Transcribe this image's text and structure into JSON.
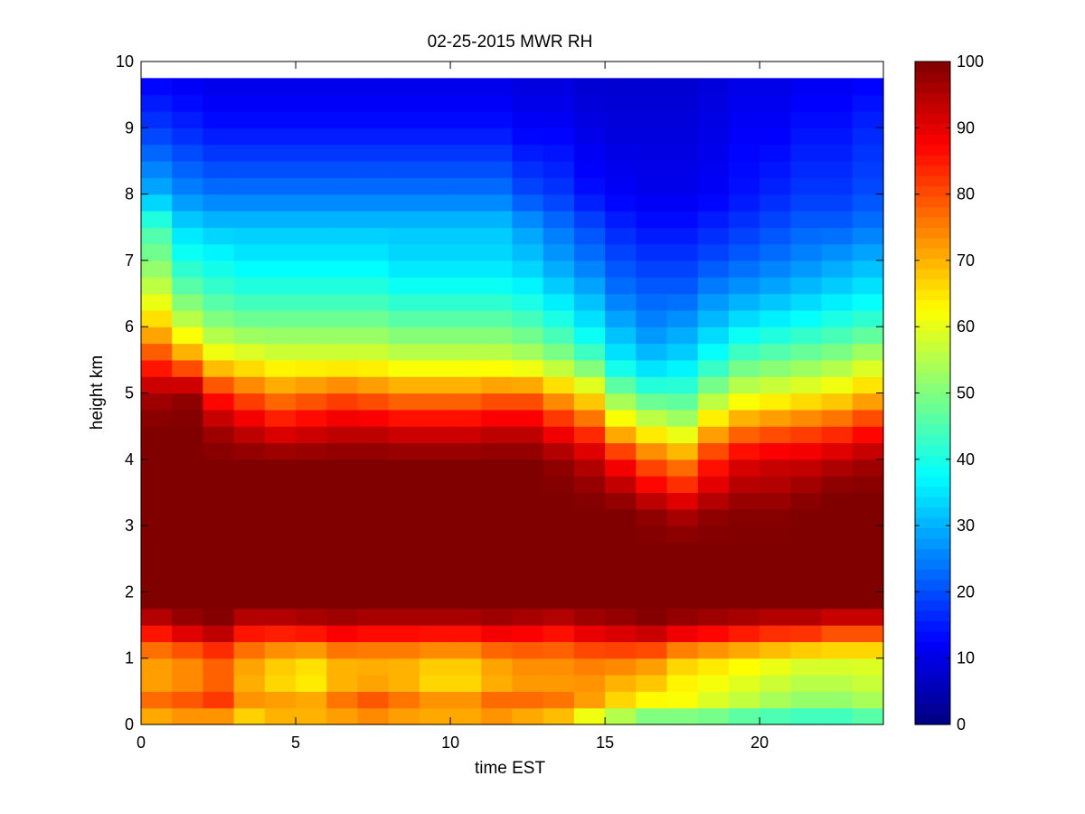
{
  "chart_data": {
    "type": "heatmap",
    "title": "02-25-2015 MWR RH",
    "xlabel": "time EST",
    "ylabel": "height km",
    "xlim": [
      0,
      24
    ],
    "ylim": [
      0,
      10
    ],
    "xticks": [
      0,
      5,
      10,
      15,
      20
    ],
    "yticks": [
      0,
      1,
      2,
      3,
      4,
      5,
      6,
      7,
      8,
      9,
      10
    ],
    "colorbar": {
      "range": [
        0,
        100
      ],
      "ticks": [
        0,
        10,
        20,
        30,
        40,
        50,
        60,
        70,
        80,
        90,
        100
      ],
      "colormap": "jet"
    },
    "time_start": 0,
    "time_step": 1,
    "time_count": 24,
    "height_step": 0.25,
    "height_max": 9.75,
    "grid": false,
    "profile_keys": [
      "heights",
      "t0",
      "t1",
      "t2",
      "t3",
      "t4",
      "t5",
      "t6",
      "t7",
      "t8",
      "t9",
      "t10",
      "t11",
      "t12",
      "t13",
      "t14",
      "t15",
      "t16",
      "t17",
      "t18",
      "t19",
      "t20",
      "t21",
      "t22",
      "t23"
    ],
    "profiles": [
      [
        0.0,
        60,
        62,
        60,
        58,
        62,
        62,
        62,
        62,
        62,
        62,
        62,
        62,
        60,
        58,
        50,
        45,
        40,
        38,
        40,
        38,
        38,
        38,
        38,
        40
      ],
      [
        0.25,
        82,
        84,
        86,
        76,
        78,
        78,
        82,
        86,
        82,
        80,
        80,
        84,
        82,
        80,
        72,
        65,
        60,
        62,
        58,
        55,
        52,
        50,
        50,
        52
      ],
      [
        0.5,
        72,
        74,
        78,
        70,
        66,
        64,
        70,
        72,
        70,
        66,
        66,
        70,
        72,
        72,
        72,
        68,
        66,
        62,
        60,
        58,
        56,
        54,
        54,
        56
      ],
      [
        1.0,
        72,
        74,
        78,
        72,
        68,
        66,
        70,
        70,
        70,
        68,
        68,
        72,
        74,
        74,
        76,
        76,
        74,
        68,
        66,
        64,
        62,
        60,
        60,
        60
      ],
      [
        1.5,
        90,
        96,
        99,
        90,
        90,
        92,
        94,
        92,
        92,
        92,
        92,
        94,
        92,
        90,
        94,
        96,
        99,
        96,
        94,
        92,
        90,
        90,
        86,
        86
      ],
      [
        1.75,
        100,
        100,
        100,
        100,
        100,
        100,
        100,
        100,
        100,
        100,
        100,
        100,
        100,
        100,
        100,
        100,
        100,
        100,
        100,
        100,
        100,
        100,
        100,
        100
      ],
      [
        2.75,
        100,
        100,
        100,
        100,
        100,
        100,
        100,
        100,
        100,
        100,
        100,
        100,
        100,
        100,
        100,
        100,
        100,
        100,
        100,
        100,
        100,
        100,
        100,
        100
      ],
      [
        3.25,
        100,
        100,
        100,
        100,
        100,
        100,
        100,
        100,
        100,
        100,
        100,
        100,
        100,
        100,
        100,
        100,
        98,
        95,
        98,
        99,
        99,
        100,
        100,
        100
      ],
      [
        3.5,
        100,
        100,
        100,
        100,
        100,
        100,
        100,
        100,
        100,
        100,
        100,
        100,
        100,
        100,
        99,
        96,
        90,
        86,
        92,
        96,
        96,
        98,
        100,
        100
      ],
      [
        4.0,
        100,
        100,
        100,
        100,
        100,
        100,
        100,
        100,
        100,
        100,
        100,
        100,
        100,
        98,
        94,
        86,
        78,
        74,
        84,
        90,
        92,
        92,
        94,
        96
      ],
      [
        4.5,
        100,
        100,
        96,
        92,
        88,
        90,
        92,
        92,
        90,
        90,
        90,
        92,
        92,
        86,
        80,
        66,
        60,
        56,
        68,
        74,
        76,
        78,
        80,
        84
      ],
      [
        5.0,
        96,
        98,
        84,
        78,
        74,
        76,
        78,
        76,
        74,
        74,
        74,
        76,
        76,
        70,
        64,
        50,
        44,
        44,
        52,
        58,
        60,
        62,
        64,
        68
      ],
      [
        5.5,
        82,
        74,
        64,
        62,
        60,
        60,
        60,
        60,
        58,
        58,
        58,
        58,
        56,
        52,
        46,
        36,
        32,
        34,
        40,
        46,
        48,
        50,
        52,
        56
      ],
      [
        6.0,
        68,
        58,
        52,
        50,
        50,
        50,
        50,
        50,
        48,
        48,
        48,
        48,
        46,
        42,
        36,
        30,
        26,
        28,
        32,
        36,
        38,
        40,
        42,
        44
      ],
      [
        6.5,
        58,
        48,
        44,
        42,
        42,
        42,
        42,
        42,
        40,
        40,
        40,
        40,
        38,
        34,
        30,
        24,
        22,
        22,
        26,
        28,
        30,
        32,
        34,
        36
      ],
      [
        7.0,
        50,
        40,
        38,
        36,
        36,
        36,
        36,
        36,
        34,
        34,
        34,
        34,
        32,
        28,
        24,
        20,
        18,
        18,
        20,
        22,
        24,
        26,
        28,
        30
      ],
      [
        7.5,
        44,
        34,
        32,
        32,
        32,
        32,
        32,
        32,
        32,
        32,
        32,
        32,
        28,
        24,
        20,
        16,
        14,
        14,
        16,
        18,
        20,
        22,
        22,
        24
      ],
      [
        8.0,
        30,
        26,
        24,
        24,
        24,
        24,
        24,
        24,
        24,
        24,
        24,
        24,
        20,
        18,
        14,
        12,
        11,
        11,
        12,
        14,
        16,
        18,
        18,
        20
      ],
      [
        9.0,
        18,
        16,
        14,
        14,
        14,
        14,
        14,
        14,
        14,
        14,
        14,
        14,
        12,
        12,
        10,
        9,
        9,
        9,
        10,
        12,
        12,
        14,
        14,
        16
      ],
      [
        9.75,
        12,
        11,
        10,
        10,
        10,
        10,
        10,
        10,
        10,
        10,
        10,
        10,
        9,
        9,
        8,
        8,
        8,
        8,
        9,
        10,
        10,
        11,
        11,
        12
      ]
    ]
  }
}
